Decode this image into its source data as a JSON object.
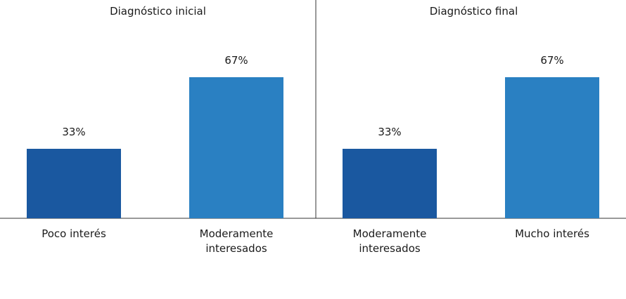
{
  "chart_data": [
    {
      "type": "bar",
      "title": "Diagnóstico inicial",
      "categories": [
        "Poco interés",
        "Moderamente interesados"
      ],
      "values": [
        33,
        67
      ],
      "value_labels": [
        "33%",
        "67%"
      ],
      "colors": [
        "#1a58a0",
        "#2a80c2"
      ]
    },
    {
      "type": "bar",
      "title": "Diagnóstico final",
      "categories": [
        "Moderamente interesados",
        "Mucho interés"
      ],
      "values": [
        33,
        67
      ],
      "value_labels": [
        "33%",
        "67%"
      ],
      "colors": [
        "#1a58a0",
        "#2a80c2"
      ]
    }
  ]
}
